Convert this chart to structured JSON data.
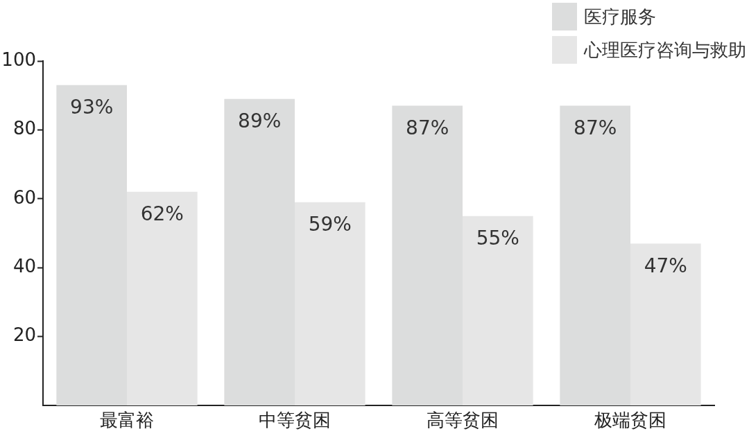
{
  "chart_data": {
    "type": "bar",
    "categories": [
      "最富裕",
      "中等贫困",
      "高等贫困",
      "极端贫困"
    ],
    "series": [
      {
        "name": "医疗服务",
        "color": "#dcdddd",
        "values": [
          93,
          89,
          87,
          87
        ],
        "value_labels": [
          "93%",
          "89%",
          "87%",
          "87%"
        ]
      },
      {
        "name": "心理医疗咨询与救助",
        "color": "#e6e6e6",
        "values": [
          62,
          59,
          55,
          47
        ],
        "value_labels": [
          "62%",
          "59%",
          "55%",
          "47%"
        ]
      }
    ],
    "ylim": [
      0,
      100
    ],
    "yticks": [
      20,
      40,
      60,
      80,
      100
    ],
    "grid": false,
    "legend": "top right"
  }
}
